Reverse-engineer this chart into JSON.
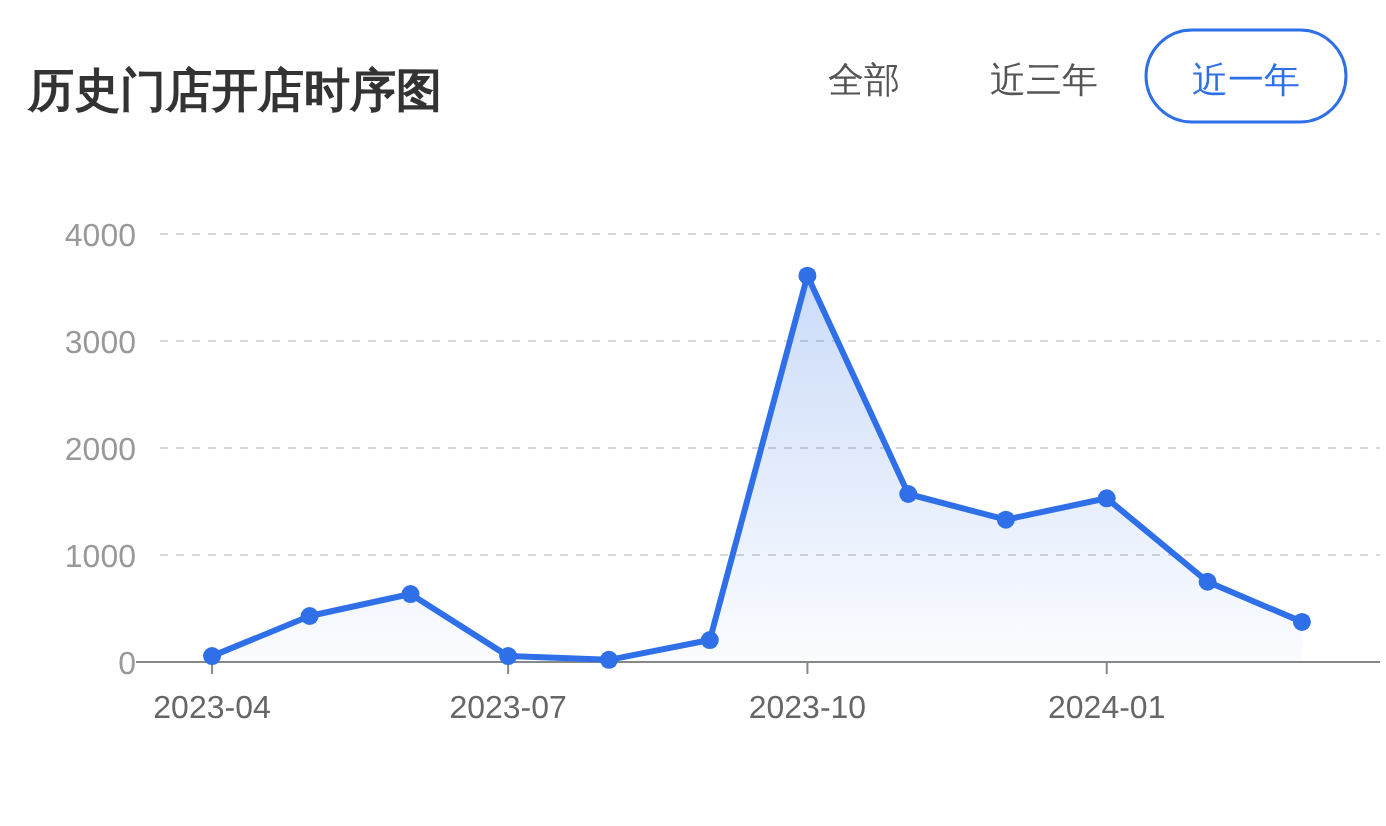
{
  "chart_data": {
    "type": "area",
    "title": "历史门店开店时序图",
    "annotations": [
      "全部",
      "近三年",
      "近一年"
    ],
    "x": [
      "2023-04",
      "2023-05",
      "2023-06",
      "2023-07",
      "2023-08",
      "2023-09",
      "2023-10",
      "2023-11",
      "2023-12",
      "2024-01",
      "2024-02",
      "2024-03"
    ],
    "series": [
      {
        "color": "#2f6fe8",
        "values": [
          55,
          430,
          635,
          55,
          20,
          205,
          3610,
          1570,
          1330,
          1530,
          750,
          375
        ]
      }
    ],
    "xlim": [
      "2023-03-16",
      "2024-03-25"
    ],
    "xticks": [
      "2023-04",
      "2023-07",
      "2023-10",
      "2024-01"
    ],
    "ylim": [
      0,
      4000
    ],
    "yticks": [
      0,
      1000,
      2000,
      3000,
      4000
    ],
    "grid": "y",
    "marker": "circle",
    "line_style": "solid"
  }
}
